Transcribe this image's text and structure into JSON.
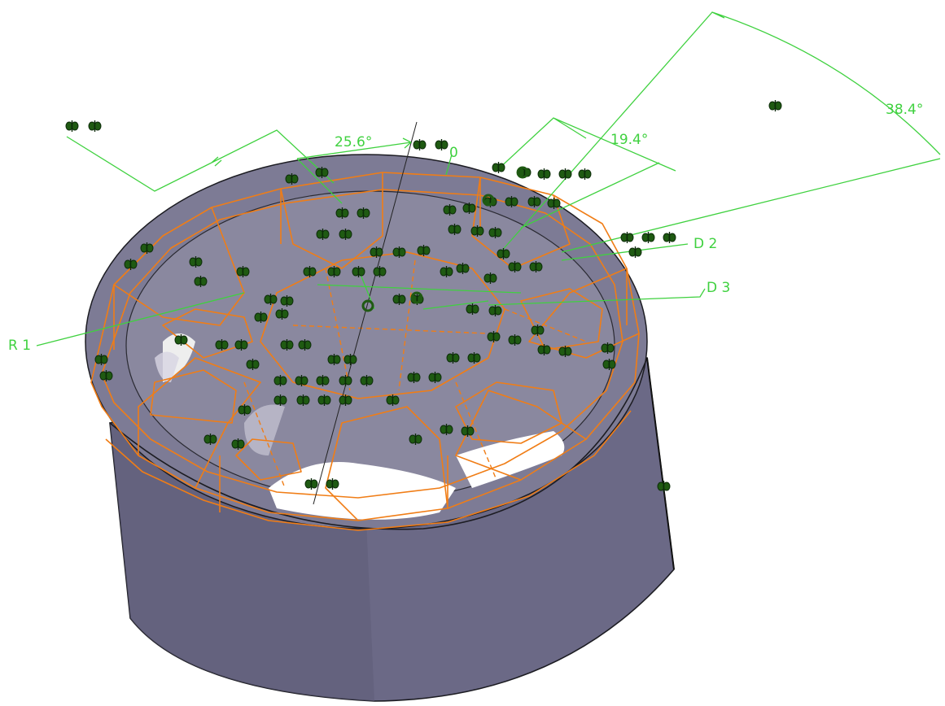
{
  "viewport": {
    "background": "#ffffff",
    "part_color": "#6c6a86",
    "wireframe_color": "#f07d16",
    "annotation_color": "#3fd13f",
    "symbol_color": "#1f5a12"
  },
  "angle_dimensions": [
    {
      "id": "a1",
      "text": "25.6°"
    },
    {
      "id": "a2",
      "text": "19.4°"
    },
    {
      "id": "a3",
      "text": "38.4°"
    },
    {
      "id": "a4",
      "text": "0"
    }
  ],
  "constraint_labels": [
    {
      "id": "d2",
      "text": "D 2"
    },
    {
      "id": "d3",
      "text": "D 3"
    },
    {
      "id": "r1",
      "text": "R 1"
    }
  ],
  "icons": {
    "constraint_symbol": "fix-constraint-icon"
  }
}
